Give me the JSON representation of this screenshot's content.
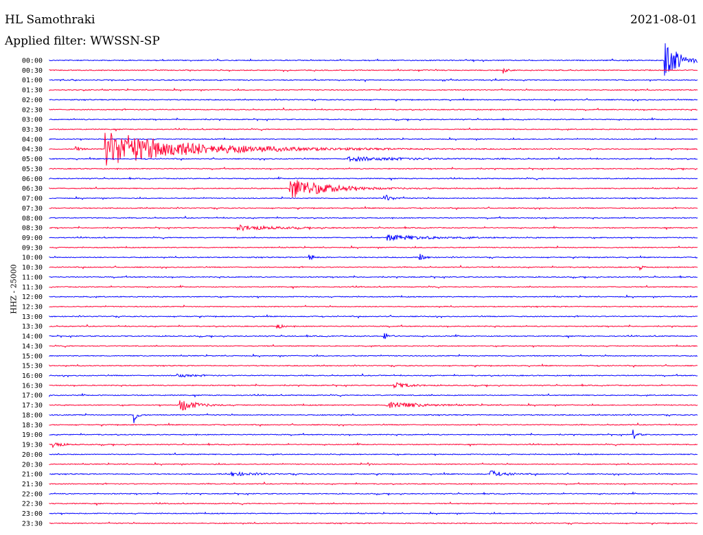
{
  "header": {
    "station": "HL Samothraki",
    "filter": "Applied filter: WWSSN-SP",
    "date": "2021-08-01"
  },
  "chart_data": {
    "type": "line",
    "title": "HL Samothraki",
    "subtitle": "Applied filter: WWSSN-SP",
    "ylabel": "HHZ - 25000",
    "colors": {
      "even_rows": "#0000ff",
      "odd_rows": "#ff0033"
    },
    "rows": [
      "00:00",
      "00:30",
      "01:00",
      "01:30",
      "02:00",
      "02:30",
      "03:00",
      "03:30",
      "04:00",
      "04:30",
      "05:00",
      "05:30",
      "06:00",
      "06:30",
      "07:00",
      "07:30",
      "08:00",
      "08:30",
      "09:00",
      "09:30",
      "10:00",
      "10:30",
      "11:00",
      "11:30",
      "12:00",
      "12:30",
      "13:00",
      "13:30",
      "14:00",
      "14:30",
      "15:00",
      "15:30",
      "16:00",
      "16:30",
      "17:00",
      "17:30",
      "18:00",
      "18:30",
      "19:00",
      "19:30",
      "20:00",
      "20:30",
      "21:00",
      "21:30",
      "22:00",
      "22:30",
      "23:00",
      "23:30"
    ],
    "events": [
      {
        "row": "00:00",
        "start_frac": 0.948,
        "amplitude": 36,
        "decay": 0.018
      },
      {
        "row": "00:30",
        "start_frac": 0.7,
        "amplitude": 4,
        "decay": 0.006
      },
      {
        "row": "04:30",
        "start_frac": 0.085,
        "amplitude": 26,
        "decay": 0.12
      },
      {
        "row": "04:30",
        "start_frac": 0.04,
        "amplitude": 6,
        "decay": 0.006
      },
      {
        "row": "05:00",
        "start_frac": 0.46,
        "amplitude": 3,
        "decay": 0.08
      },
      {
        "row": "06:30",
        "start_frac": 0.37,
        "amplitude": 17,
        "decay": 0.05
      },
      {
        "row": "07:00",
        "start_frac": 0.515,
        "amplitude": 7,
        "decay": 0.01
      },
      {
        "row": "08:30",
        "start_frac": 0.29,
        "amplitude": 4,
        "decay": 0.05
      },
      {
        "row": "09:00",
        "start_frac": 0.52,
        "amplitude": 4,
        "decay": 0.06
      },
      {
        "row": "10:00",
        "start_frac": 0.4,
        "amplitude": 7,
        "decay": 0.006
      },
      {
        "row": "10:00",
        "start_frac": 0.57,
        "amplitude": 9,
        "decay": 0.006
      },
      {
        "row": "10:30",
        "start_frac": 0.91,
        "amplitude": 6,
        "decay": 0.004
      },
      {
        "row": "13:30",
        "start_frac": 0.35,
        "amplitude": 6,
        "decay": 0.006
      },
      {
        "row": "14:00",
        "start_frac": 0.515,
        "amplitude": 9,
        "decay": 0.006
      },
      {
        "row": "16:00",
        "start_frac": 0.195,
        "amplitude": 3,
        "decay": 0.02
      },
      {
        "row": "16:30",
        "start_frac": 0.53,
        "amplitude": 5,
        "decay": 0.02
      },
      {
        "row": "17:30",
        "start_frac": 0.2,
        "amplitude": 11,
        "decay": 0.02
      },
      {
        "row": "17:30",
        "start_frac": 0.52,
        "amplitude": 6,
        "decay": 0.04
      },
      {
        "row": "18:00",
        "start_frac": 0.13,
        "amplitude": 16,
        "decay": 0.004
      },
      {
        "row": "19:00",
        "start_frac": 0.9,
        "amplitude": 9,
        "decay": 0.005
      },
      {
        "row": "19:30",
        "start_frac": 0.005,
        "amplitude": 6,
        "decay": 0.01
      },
      {
        "row": "20:30",
        "start_frac": 0.49,
        "amplitude": 4,
        "decay": 0.003
      },
      {
        "row": "21:00",
        "start_frac": 0.68,
        "amplitude": 5,
        "decay": 0.02
      },
      {
        "row": "21:00",
        "start_frac": 0.28,
        "amplitude": 3,
        "decay": 0.03
      }
    ]
  }
}
